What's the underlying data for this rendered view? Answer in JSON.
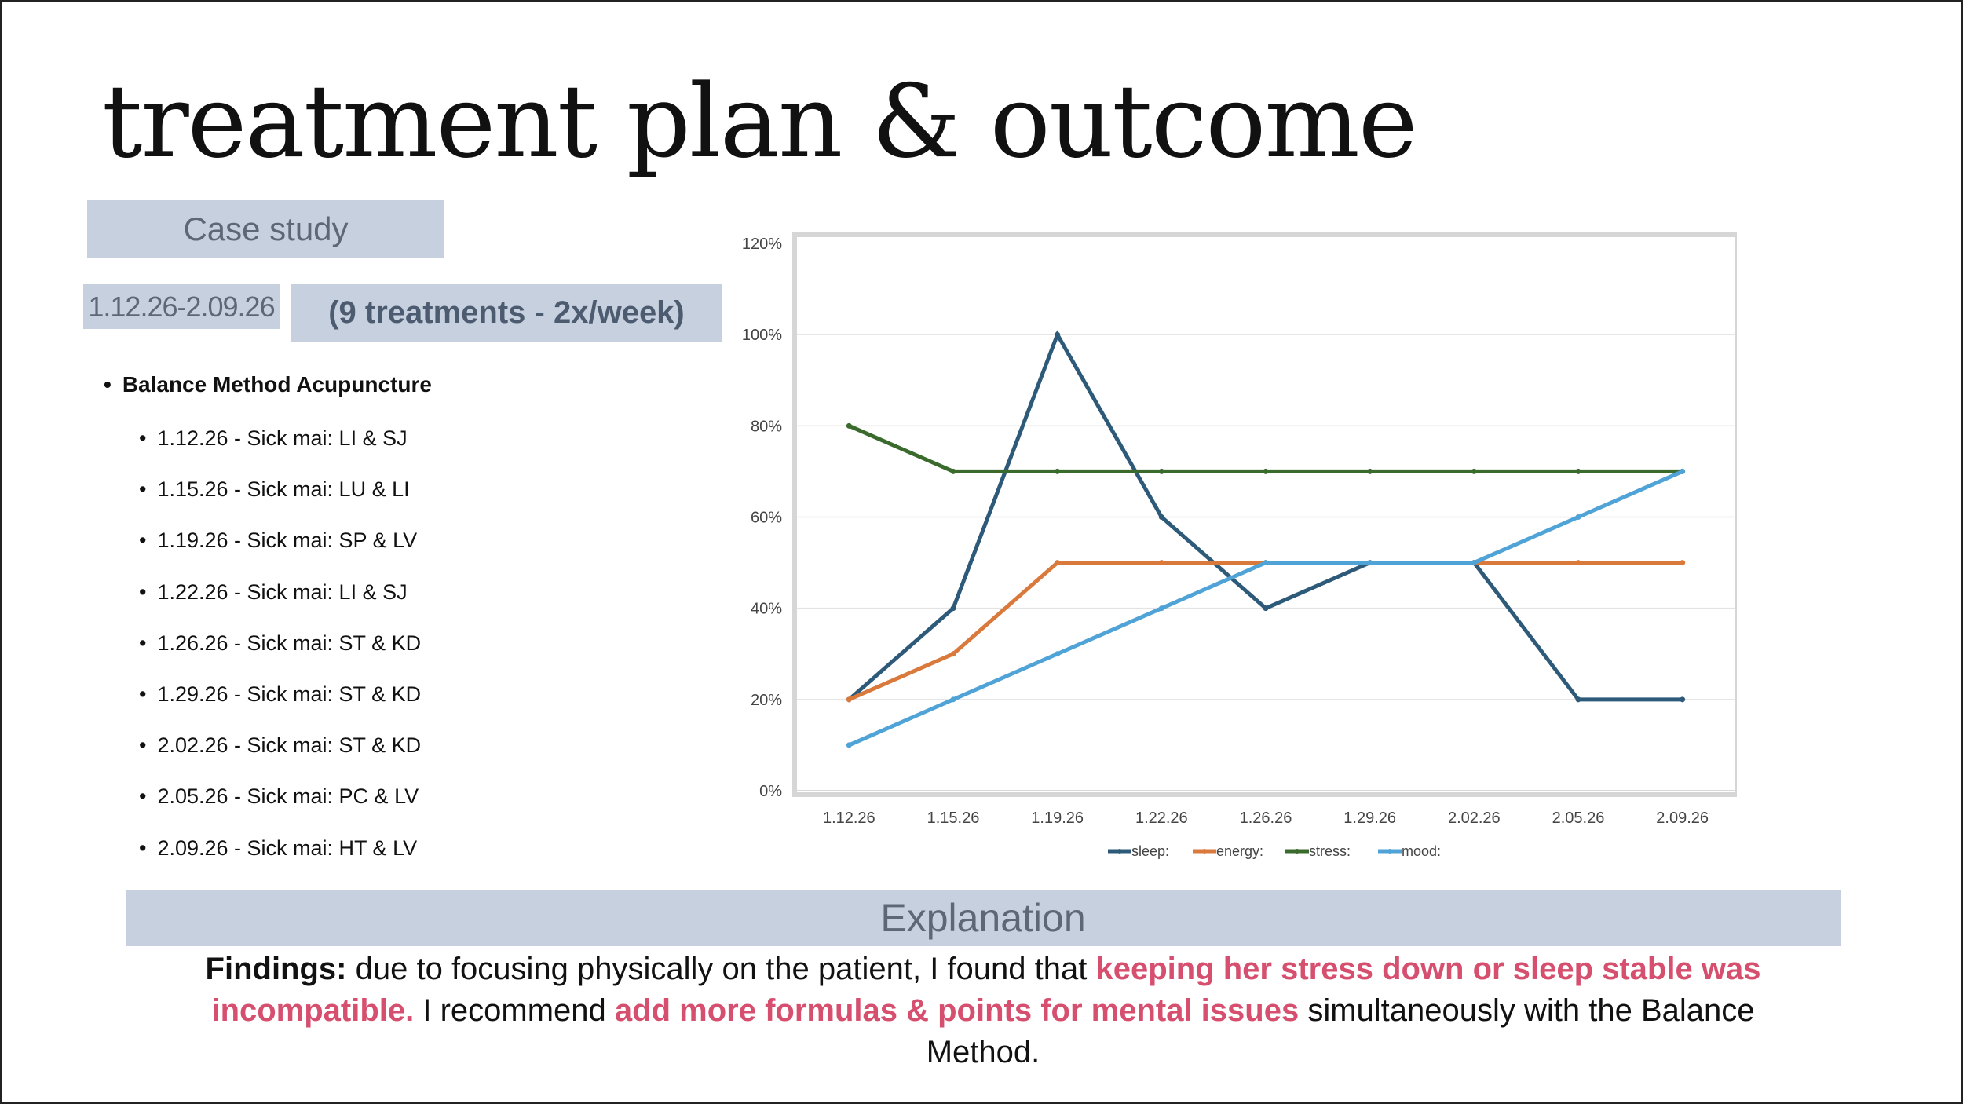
{
  "page": {
    "title": "treatment plan & outcome",
    "case_label": "Case study",
    "date_range": "1.12.26-2.09.26",
    "treatment_count": "(9 treatments - 2x/week)",
    "method": "Balance Method Acupuncture",
    "treatments": [
      "1.12.26 - Sick mai: LI & SJ",
      "1.15.26 - Sick mai: LU & LI",
      "1.19.26 - Sick mai: SP & LV",
      "1.22.26 - Sick mai: LI & SJ",
      "1.26.26 - Sick mai: ST & KD",
      "1.29.26 - Sick mai: ST & KD",
      "2.02.26 - Sick mai: ST & KD",
      "2.05.26 - Sick mai: PC & LV",
      "2.09.26 - Sick mai: HT & LV"
    ],
    "explanation_label": "Explanation",
    "findings": {
      "lead": "Findings:",
      "text1": " due to focusing physically on the patient, I found that ",
      "highlight1": "keeping her stress down or sleep stable was incompatible.",
      "text2": " I recommend ",
      "highlight2": "add more formulas & points for mental issues",
      "text3": " simultaneously with the Balance Method."
    },
    "colors": {
      "box": "#c6d0de",
      "highlight": "#d64f6f"
    }
  },
  "chart_data": {
    "type": "line",
    "title": "",
    "xlabel": "",
    "ylabel": "",
    "categories": [
      "1.12.26",
      "1.15.26",
      "1.19.26",
      "1.22.26",
      "1.26.26",
      "1.29.26",
      "2.02.26",
      "2.05.26",
      "2.09.26"
    ],
    "y_ticks": [
      "0%",
      "20%",
      "40%",
      "60%",
      "80%",
      "100%",
      "120%"
    ],
    "ylim": [
      0,
      120
    ],
    "grid": true,
    "legend_position": "bottom",
    "series": [
      {
        "name": "sleep:",
        "color": "#2e5a7a",
        "values": [
          20,
          40,
          100,
          60,
          40,
          50,
          50,
          20,
          20
        ]
      },
      {
        "name": "energy:",
        "color": "#d97a3c",
        "values": [
          20,
          30,
          50,
          50,
          50,
          50,
          50,
          50,
          50
        ]
      },
      {
        "name": "stress:",
        "color": "#3a6b2d",
        "values": [
          80,
          70,
          70,
          70,
          70,
          70,
          70,
          70,
          70
        ]
      },
      {
        "name": "mood:",
        "color": "#4fa3d6",
        "values": [
          10,
          20,
          30,
          40,
          50,
          50,
          50,
          60,
          70
        ]
      }
    ]
  }
}
